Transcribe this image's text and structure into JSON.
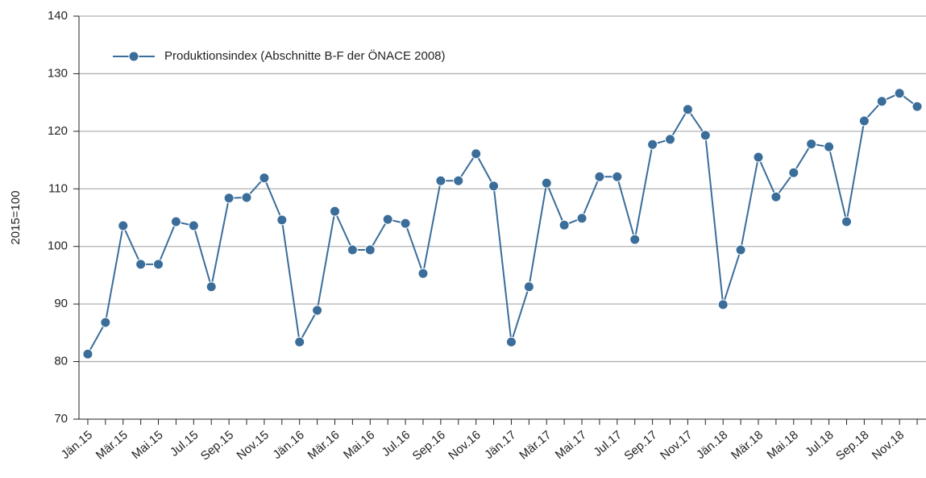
{
  "chart_data": {
    "type": "line",
    "y_label": "2015=100",
    "categories": [
      "Jän.15",
      null,
      "Mär.15",
      null,
      "Mai.15",
      null,
      "Jul.15",
      null,
      "Sep.15",
      null,
      "Nov.15",
      null,
      "Jän.16",
      null,
      "Mär.16",
      null,
      "Mai.16",
      null,
      "Jul.16",
      null,
      "Sep.16",
      null,
      "Nov.16",
      null,
      "Jän.17",
      null,
      "Mär.17",
      null,
      "Mai.17",
      null,
      "Jul.17",
      null,
      "Sep.17",
      null,
      "Nov.17",
      null,
      "Jän.18",
      null,
      "Mär.18",
      null,
      "Mai.18",
      null,
      "Jul.18",
      null,
      "Sep.18",
      null,
      "Nov.18",
      null
    ],
    "series": [
      {
        "name": "Produktionsindex (Abschnitte B-F der ÖNACE 2008)",
        "color": "#3a6d9a",
        "values": [
          81.3,
          86.8,
          103.6,
          96.9,
          96.9,
          104.3,
          103.6,
          93.0,
          108.4,
          108.5,
          111.9,
          104.6,
          83.4,
          88.9,
          106.1,
          99.4,
          99.4,
          104.7,
          104.0,
          95.3,
          111.4,
          111.4,
          116.1,
          110.5,
          83.4,
          93.0,
          111.0,
          103.7,
          104.9,
          112.1,
          112.1,
          101.2,
          117.7,
          118.6,
          123.8,
          119.3,
          89.9,
          99.4,
          115.5,
          108.6,
          112.8,
          117.8,
          117.3,
          104.3,
          121.8,
          125.2,
          126.6,
          124.3
        ]
      }
    ],
    "ylim": [
      70,
      140
    ],
    "yticks": [
      70,
      80,
      90,
      100,
      110,
      120,
      130,
      140
    ],
    "grid": true,
    "legend": "top-left"
  }
}
